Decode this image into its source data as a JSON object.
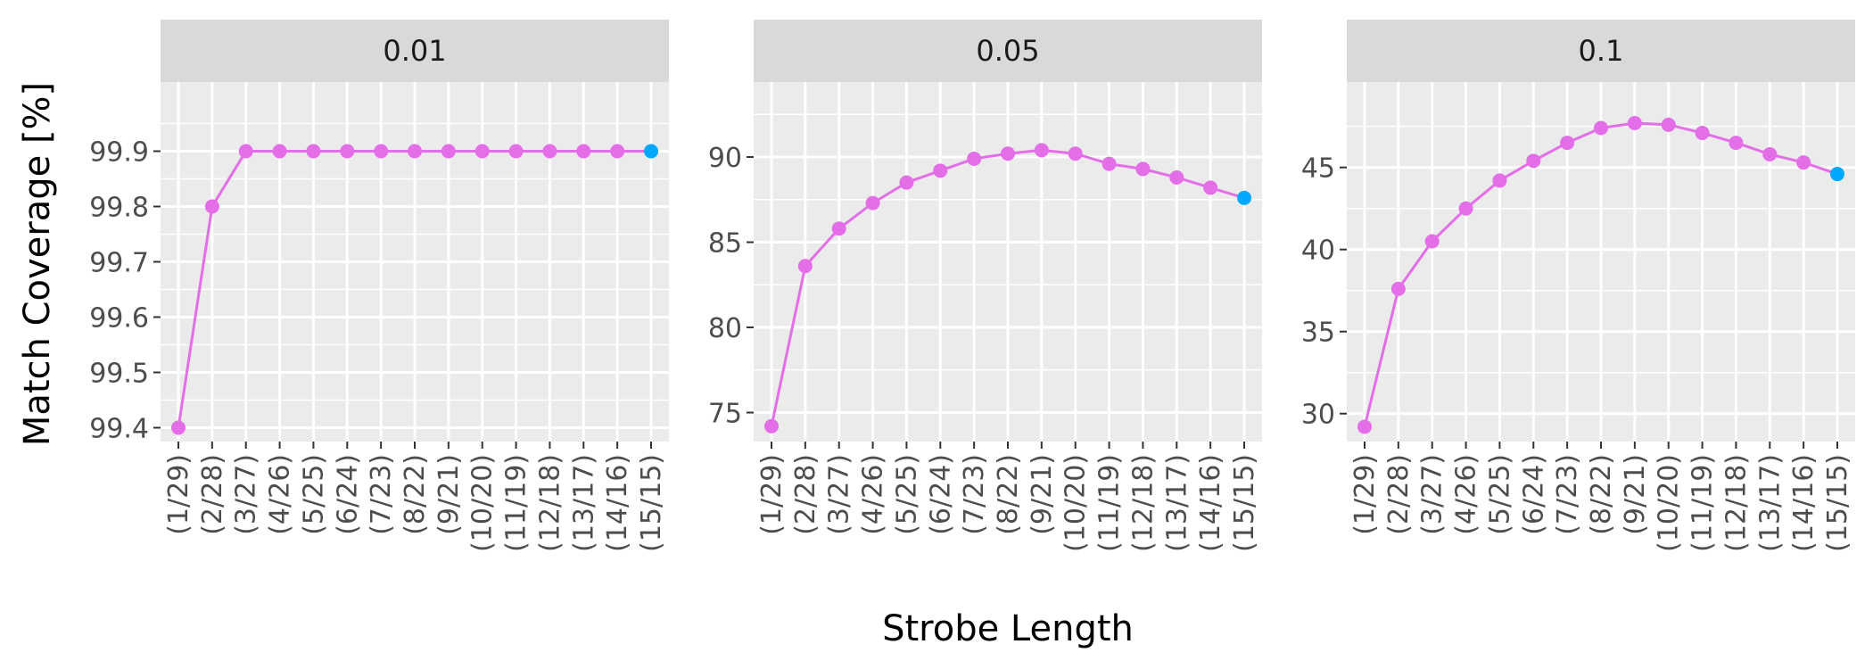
{
  "chart_data": {
    "type": "line",
    "xlabel": "Strobe Length",
    "ylabel": "Match Coverage [%]",
    "categories": [
      "(1/29)",
      "(2/28)",
      "(3/27)",
      "(4/26)",
      "(5/25)",
      "(6/24)",
      "(7/23)",
      "(8/22)",
      "(9/21)",
      "(10/20)",
      "(11/19)",
      "(12/18)",
      "(13/17)",
      "(14/16)",
      "(15/15)"
    ],
    "colors": {
      "line": "#e36ee8",
      "last_point": "#00a9ff",
      "panel_bg": "#ebebeb",
      "strip_bg": "#d9d9d9",
      "grid": "#ffffff"
    },
    "grid": true,
    "legend": "none",
    "panels": [
      {
        "label": "0.01",
        "ylim": [
          99.375,
          100.025
        ],
        "yticks": [
          "99.4",
          "99.5",
          "99.6",
          "99.7",
          "99.8",
          "99.9"
        ],
        "values": [
          99.4,
          99.8,
          99.9,
          99.9,
          99.9,
          99.9,
          99.9,
          99.9,
          99.9,
          99.9,
          99.9,
          99.9,
          99.9,
          99.9,
          99.9
        ]
      },
      {
        "label": "0.05",
        "ylim": [
          73.3,
          94.4
        ],
        "yticks": [
          "75",
          "80",
          "85",
          "90"
        ],
        "values": [
          74.2,
          83.6,
          85.8,
          87.3,
          88.5,
          89.2,
          89.9,
          90.2,
          90.4,
          90.2,
          89.6,
          89.3,
          88.8,
          88.2,
          87.6
        ]
      },
      {
        "label": "0.1",
        "ylim": [
          28.3,
          50.2
        ],
        "yticks": [
          "30",
          "35",
          "40",
          "45"
        ],
        "values": [
          29.2,
          37.6,
          40.5,
          42.5,
          44.2,
          45.4,
          46.5,
          47.4,
          47.7,
          47.6,
          47.1,
          46.5,
          45.8,
          45.3,
          44.6
        ]
      }
    ]
  }
}
